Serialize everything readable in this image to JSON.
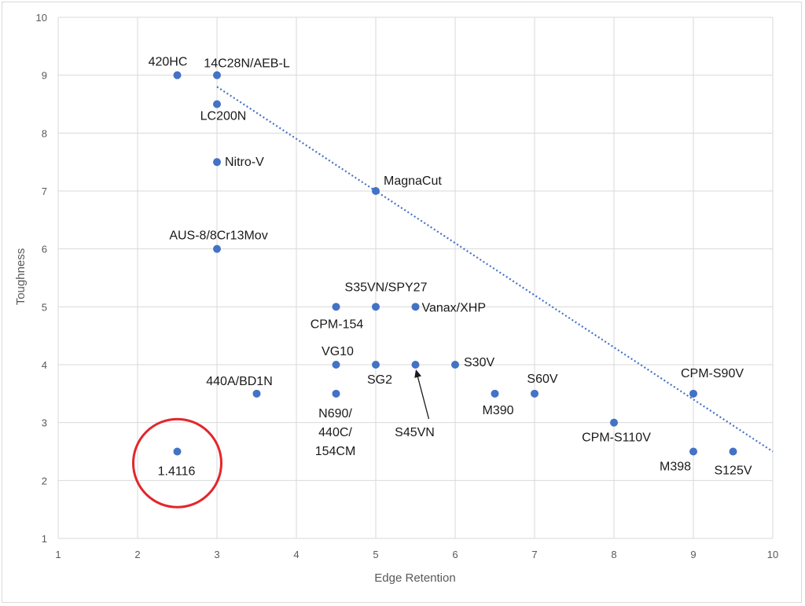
{
  "chart_data": {
    "type": "scatter",
    "xlabel": "Edge Retention",
    "ylabel": "Toughness",
    "xlim": [
      1,
      10
    ],
    "ylim": [
      1,
      10
    ],
    "xticks": [
      1,
      2,
      3,
      4,
      5,
      6,
      7,
      8,
      9,
      10
    ],
    "yticks": [
      1,
      2,
      3,
      4,
      5,
      6,
      7,
      8,
      9,
      10
    ],
    "grid": true,
    "marker_color": "#4472c4",
    "trendline": {
      "style": "dotted",
      "color": "#4472c4",
      "from": [
        3,
        8.8
      ],
      "to": [
        10,
        2.5
      ]
    },
    "highlight": {
      "shape": "circle",
      "color": "#e3262b",
      "center": [
        2.5,
        2.3
      ]
    },
    "arrow_note": {
      "from_label": "S45VN",
      "to_point": [
        5.5,
        4
      ]
    },
    "points": [
      {
        "x": 2.5,
        "y": 9,
        "label": [
          "420HC"
        ]
      },
      {
        "x": 3,
        "y": 9,
        "label": [
          "14C28N/AEB-L"
        ]
      },
      {
        "x": 3,
        "y": 8.5,
        "label": [
          "LC200N"
        ]
      },
      {
        "x": 3,
        "y": 7.5,
        "label": [
          "Nitro-V"
        ]
      },
      {
        "x": 3,
        "y": 6,
        "label": [
          "AUS-8/8Cr13Mov"
        ]
      },
      {
        "x": 5,
        "y": 7,
        "label": [
          "MagnaCut"
        ]
      },
      {
        "x": 4.5,
        "y": 5,
        "label": [
          "CPM-154"
        ]
      },
      {
        "x": 5,
        "y": 5,
        "label": [
          "S35VN/SPY27"
        ]
      },
      {
        "x": 5.5,
        "y": 5,
        "label": [
          "Vanax/XHP"
        ]
      },
      {
        "x": 4.5,
        "y": 4,
        "label": [
          "VG10"
        ]
      },
      {
        "x": 5,
        "y": 4,
        "label": [
          "SG2"
        ]
      },
      {
        "x": 5.5,
        "y": 4,
        "label": [
          "S45VN"
        ]
      },
      {
        "x": 6,
        "y": 4,
        "label": [
          "S30V"
        ]
      },
      {
        "x": 3.5,
        "y": 3.5,
        "label": [
          "440A/BD1N"
        ]
      },
      {
        "x": 4.5,
        "y": 3.5,
        "label": [
          "N690/",
          "440C/",
          "154CM"
        ]
      },
      {
        "x": 6.5,
        "y": 3.5,
        "label": [
          "M390"
        ]
      },
      {
        "x": 7,
        "y": 3.5,
        "label": [
          "S60V"
        ]
      },
      {
        "x": 9,
        "y": 3.5,
        "label": [
          "CPM-S90V"
        ]
      },
      {
        "x": 8,
        "y": 3,
        "label": [
          "CPM-S110V"
        ]
      },
      {
        "x": 2.5,
        "y": 2.5,
        "label": [
          "1.4116"
        ]
      },
      {
        "x": 9,
        "y": 2.5,
        "label": [
          "M398"
        ]
      },
      {
        "x": 9.5,
        "y": 2.5,
        "label": [
          "S125V"
        ]
      }
    ]
  }
}
